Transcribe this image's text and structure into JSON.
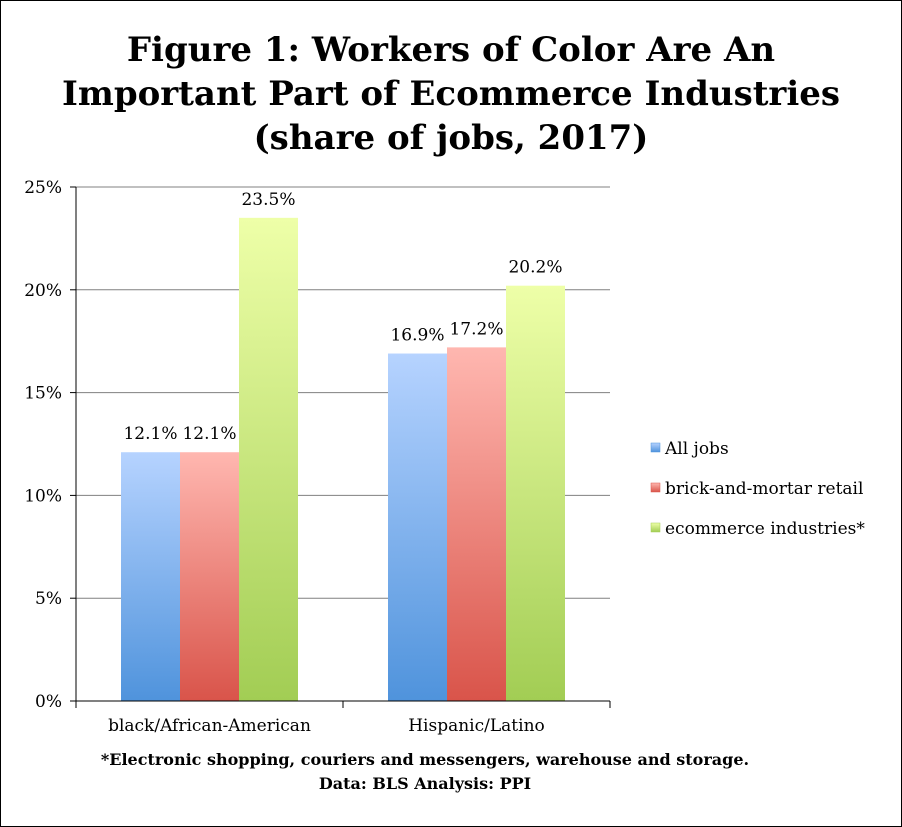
{
  "chart_data": {
    "type": "bar",
    "title_lines": [
      "Figure 1: Workers of Color Are An",
      "Important Part of Ecommerce Industries",
      "(share of jobs, 2017)"
    ],
    "categories": [
      "black/African-American",
      "Hispanic/Latino"
    ],
    "series": [
      {
        "name": "All jobs",
        "values": [
          12.1,
          16.9
        ],
        "labels": [
          "12.1%",
          "16.9%"
        ],
        "color_top": "#b6d3ff",
        "color_bottom": "#4f93dc"
      },
      {
        "name": "brick-and-mortar retail",
        "values": [
          12.1,
          17.2
        ],
        "labels": [
          "12.1%",
          "17.2%"
        ],
        "color_top": "#ffb7b0",
        "color_bottom": "#d9544a"
      },
      {
        "name": "ecommerce industries*",
        "values": [
          23.5,
          20.2
        ],
        "labels": [
          "23.5%",
          "20.2%"
        ],
        "color_top": "#eeffa8",
        "color_bottom": "#a2cd54"
      }
    ],
    "yticks": [
      "0%",
      "5%",
      "10%",
      "15%",
      "20%",
      "25%"
    ],
    "ylim": [
      0,
      25
    ],
    "ystep": 5,
    "grid": true,
    "legend_position": "right"
  },
  "footnotes": [
    "*Electronic shopping, couriers and messengers, warehouse and storage.",
    "Data: BLS  Analysis: PPI"
  ],
  "colors": {
    "axis": "#000000",
    "grid": "#808080"
  }
}
